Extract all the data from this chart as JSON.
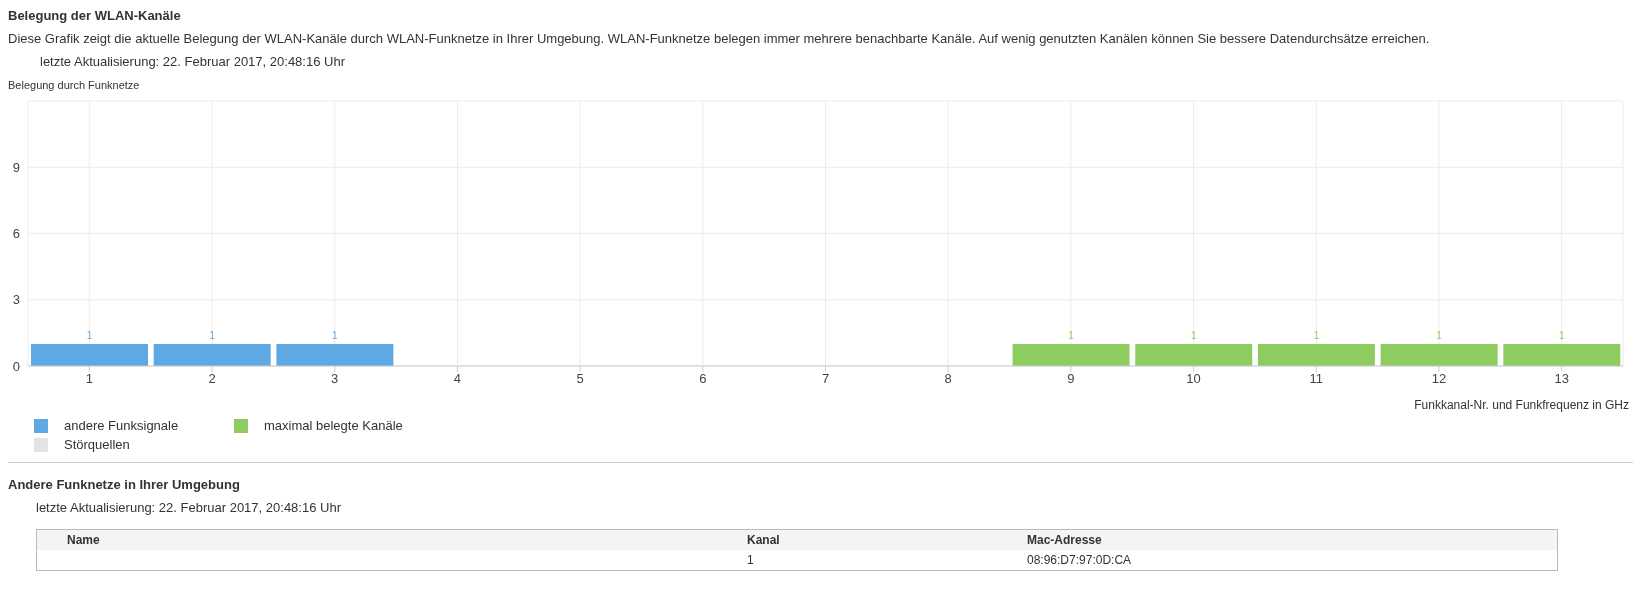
{
  "chart_data": {
    "type": "bar",
    "title": "Belegung der WLAN-Kanäle",
    "subtitle": "Diese Grafik zeigt die aktuelle Belegung der WLAN-Kanäle durch WLAN-Funknetze in Ihrer Umgebung. WLAN-Funknetze belegen immer mehrere benachbarte Kanäle. Auf wenig genutzten Kanälen können Sie bessere Datendurchsätze erreichen.",
    "ylabel": "Belegung durch Funknetze",
    "xlabel": "Funkkanal-Nr. und Funkfrequenz in GHz",
    "categories": [
      "1",
      "2",
      "3",
      "4",
      "5",
      "6",
      "7",
      "8",
      "9",
      "10",
      "11",
      "12",
      "13"
    ],
    "series": [
      {
        "name": "andere Funksignale",
        "color": "#5ea8e4",
        "values": [
          1,
          1,
          1,
          null,
          null,
          null,
          null,
          null,
          null,
          null,
          null,
          null,
          null
        ]
      },
      {
        "name": "maximal belegte Kanäle",
        "color": "#8dcc5f",
        "values": [
          null,
          null,
          null,
          null,
          null,
          null,
          null,
          null,
          1,
          1,
          1,
          1,
          1
        ]
      },
      {
        "name": "Störquellen",
        "color": "#e3e3e3",
        "values": [
          null,
          null,
          null,
          null,
          null,
          null,
          null,
          null,
          null,
          null,
          null,
          null,
          null
        ]
      }
    ],
    "stacked": true,
    "ylim": [
      0,
      12
    ],
    "yticks": [
      0,
      3,
      6,
      9,
      {
        "value": 12,
        "label": null
      }
    ],
    "grid": true,
    "data_labels": true,
    "legend": "bottom left",
    "annotations": [
      "letzte Aktualisierung: 22. Februar 2017, 20:48:16 Uhr",
      "Andere Funknetze in Ihrer Umgebung",
      "letzte Aktualisierung: 22. Februar 2017, 20:48:16 Uhr",
      "Name",
      "Kanal",
      "Mac-Adresse",
      "1",
      "08:96:D7:97:0D:CA"
    ]
  }
}
